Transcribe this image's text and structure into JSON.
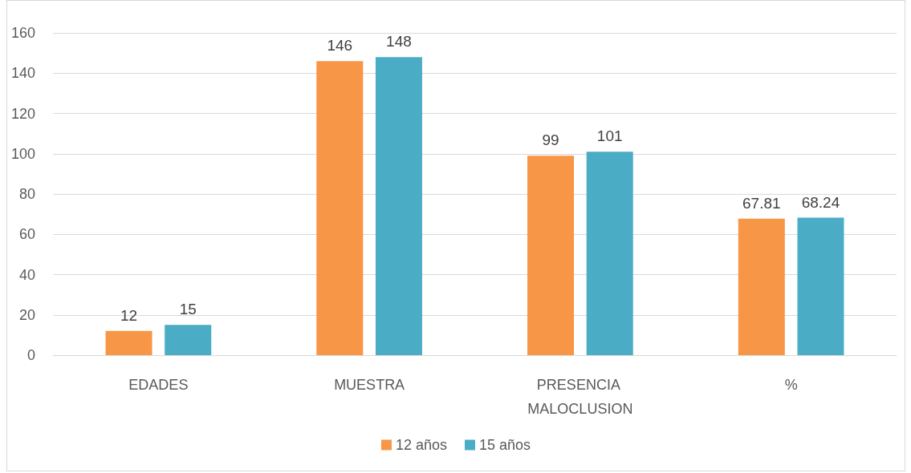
{
  "chart_data": {
    "type": "bar",
    "categories": [
      "EDADES",
      "MUESTRA",
      "PRESENCIA MALOCLUSION",
      "%"
    ],
    "series": [
      {
        "name": "12 años",
        "color": "#f79646",
        "values": [
          12,
          146,
          99,
          67.81
        ]
      },
      {
        "name": "15 años",
        "color": "#4bacc6",
        "values": [
          15,
          148,
          101,
          68.24
        ]
      }
    ],
    "ylim": [
      0,
      160
    ],
    "yticks": [
      0,
      20,
      40,
      60,
      80,
      100,
      120,
      140,
      160
    ],
    "grid": "y",
    "legend": "bottom",
    "data_labels": true
  }
}
